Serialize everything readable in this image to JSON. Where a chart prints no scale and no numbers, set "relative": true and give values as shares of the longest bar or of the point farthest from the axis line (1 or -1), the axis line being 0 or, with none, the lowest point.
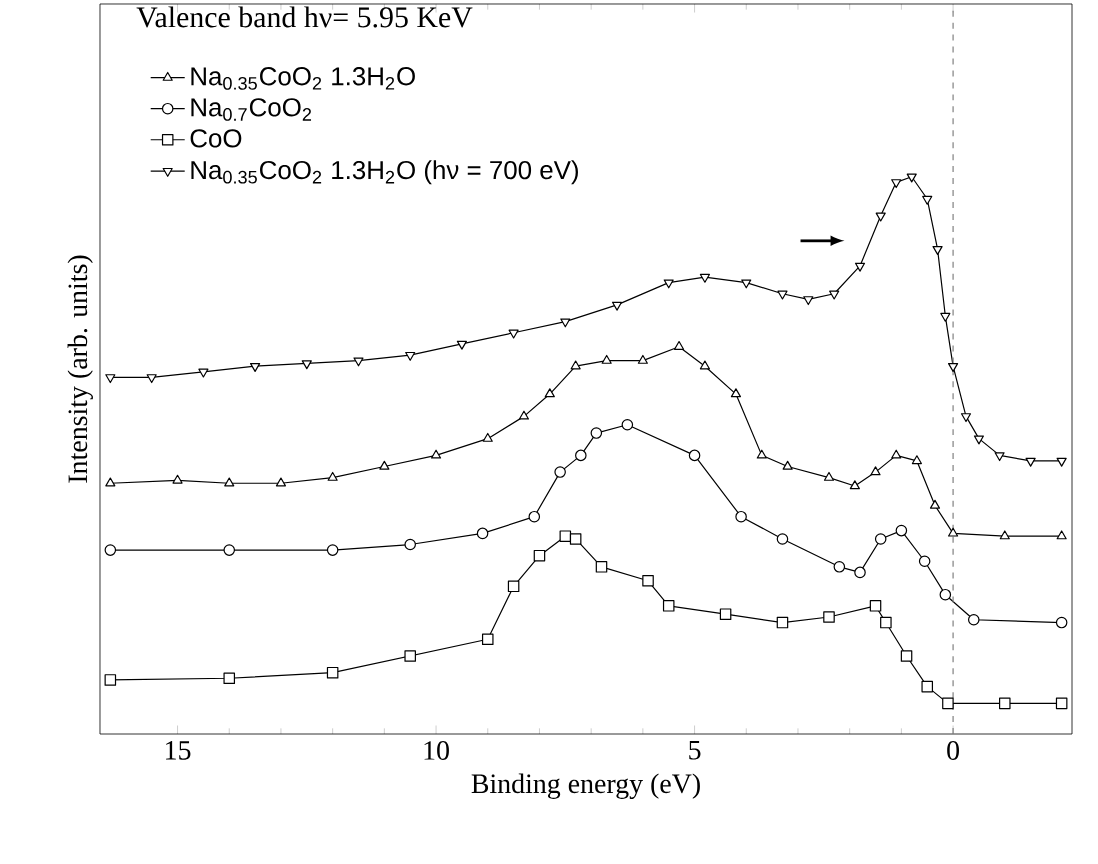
{
  "chart_data": {
    "type": "line",
    "title": "Valence band  hν= 5.95 KeV",
    "xlabel": "Binding energy (eV)",
    "ylabel": "Intensity (arb. units)",
    "relative": true,
    "xlim": [
      16.5,
      -2.3
    ],
    "xticks": [
      15,
      10,
      5,
      0
    ],
    "legend": "top left",
    "ref_lines": [
      {
        "axis": "x",
        "value": 0,
        "color": "#808080",
        "line_style": "dashed"
      }
    ],
    "series": [
      {
        "name": "Na$_{0.35}$CoO$_{2}$ 1.3H$_{2}$O",
        "color": "#000000",
        "marker": "triangle",
        "x": [
          16.3,
          15,
          14,
          13,
          12,
          11,
          10,
          9,
          8.3,
          7.8,
          7.3,
          6.7,
          6,
          5.3,
          4.8,
          4.2,
          3.7,
          3.2,
          2.4,
          1.9,
          1.5,
          1.1,
          0.7,
          0.35,
          0,
          -1,
          -2.1
        ],
        "values": [
          0.45,
          0.455,
          0.45,
          0.45,
          0.46,
          0.48,
          0.5,
          0.53,
          0.57,
          0.61,
          0.66,
          0.67,
          0.67,
          0.695,
          0.66,
          0.61,
          0.5,
          0.48,
          0.46,
          0.445,
          0.47,
          0.5,
          0.49,
          0.41,
          0.36,
          0.355,
          0.355
        ]
      },
      {
        "name": "Na$_{0.7}$CoO$_{2}$",
        "color": "#000000",
        "marker": "circle",
        "x": [
          16.3,
          14,
          12,
          10.5,
          9.1,
          8.1,
          7.6,
          7.2,
          6.9,
          6.3,
          5,
          4.1,
          3.3,
          2.2,
          1.8,
          1.4,
          1,
          0.55,
          0.15,
          -0.4,
          -2.1
        ],
        "values": [
          0.33,
          0.33,
          0.33,
          0.34,
          0.36,
          0.39,
          0.47,
          0.5,
          0.54,
          0.555,
          0.5,
          0.39,
          0.35,
          0.3,
          0.29,
          0.35,
          0.365,
          0.31,
          0.25,
          0.205,
          0.2
        ]
      },
      {
        "name": "CoO",
        "color": "#000000",
        "marker": "square",
        "x": [
          16.3,
          14,
          12,
          10.5,
          9,
          8.5,
          8,
          7.5,
          7.3,
          6.8,
          5.9,
          5.5,
          4.4,
          3.3,
          2.4,
          1.5,
          1.3,
          0.9,
          0.5,
          0.1,
          -1,
          -2.1
        ],
        "values": [
          0.097,
          0.1,
          0.11,
          0.14,
          0.17,
          0.265,
          0.32,
          0.355,
          0.35,
          0.3,
          0.275,
          0.23,
          0.215,
          0.2,
          0.21,
          0.23,
          0.2,
          0.14,
          0.085,
          0.055,
          0.055,
          0.055
        ]
      },
      {
        "name": "Na$_{0.35}$CoO$_{2}$ 1.3H$_{2}$O (hν = 700 eV)",
        "color": "#000000",
        "marker": "triangle_down",
        "x": [
          16.3,
          15.5,
          14.5,
          13.5,
          12.5,
          11.5,
          10.5,
          9.5,
          8.5,
          7.5,
          6.5,
          5.5,
          4.8,
          4,
          3.3,
          2.8,
          2.3,
          1.8,
          1.4,
          1.1,
          0.8,
          0.5,
          0.3,
          0.15,
          0,
          -0.25,
          -0.5,
          -0.9,
          -1.5,
          -2.1
        ],
        "values": [
          0.64,
          0.64,
          0.65,
          0.66,
          0.665,
          0.67,
          0.68,
          0.7,
          0.72,
          0.74,
          0.77,
          0.81,
          0.82,
          0.81,
          0.79,
          0.78,
          0.79,
          0.84,
          0.93,
          0.99,
          1.0,
          0.96,
          0.87,
          0.75,
          0.66,
          0.57,
          0.53,
          0.5,
          0.49,
          0.49
        ]
      }
    ]
  }
}
